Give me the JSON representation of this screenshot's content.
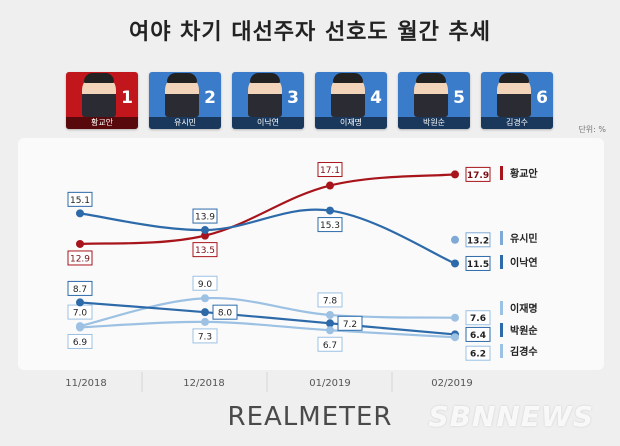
{
  "title": "여야 차기 대선주자 선호도 월간 추세",
  "unit": "단위: %",
  "candidates": [
    {
      "rank": "1",
      "name": "황교안",
      "bg": "#c0161c"
    },
    {
      "rank": "2",
      "name": "유시민",
      "bg": "#3a7cc9"
    },
    {
      "rank": "3",
      "name": "이낙연",
      "bg": "#3a7cc9"
    },
    {
      "rank": "4",
      "name": "이재명",
      "bg": "#3a7cc9"
    },
    {
      "rank": "5",
      "name": "박원순",
      "bg": "#3a7cc9"
    },
    {
      "rank": "6",
      "name": "김경수",
      "bg": "#3a7cc9"
    }
  ],
  "chart_data": {
    "type": "line",
    "x": [
      "11/2018",
      "12/2018",
      "01/2019",
      "02/2019"
    ],
    "series": [
      {
        "name": "황교안",
        "values": [
          12.9,
          13.5,
          17.1,
          17.9
        ],
        "color": "#a8141b"
      },
      {
        "name": "유시민",
        "values": [
          null,
          null,
          null,
          13.2
        ],
        "color": "#7fa9d6"
      },
      {
        "name": "이낙연",
        "values": [
          15.1,
          13.9,
          15.3,
          11.5
        ],
        "color": "#2d6aa9"
      },
      {
        "name": "이재명",
        "values": [
          7.0,
          9.0,
          7.8,
          7.6
        ],
        "color": "#9cc1e3"
      },
      {
        "name": "박원순",
        "values": [
          8.7,
          8.0,
          7.2,
          6.4
        ],
        "color": "#2d6aa9"
      },
      {
        "name": "김경수",
        "values": [
          6.9,
          7.3,
          6.7,
          6.2
        ],
        "color": "#9cc1e3"
      }
    ],
    "grid": false,
    "legend": "right"
  },
  "footer": {
    "source": "REALMETER",
    "watermark": "SBNNEWS"
  }
}
